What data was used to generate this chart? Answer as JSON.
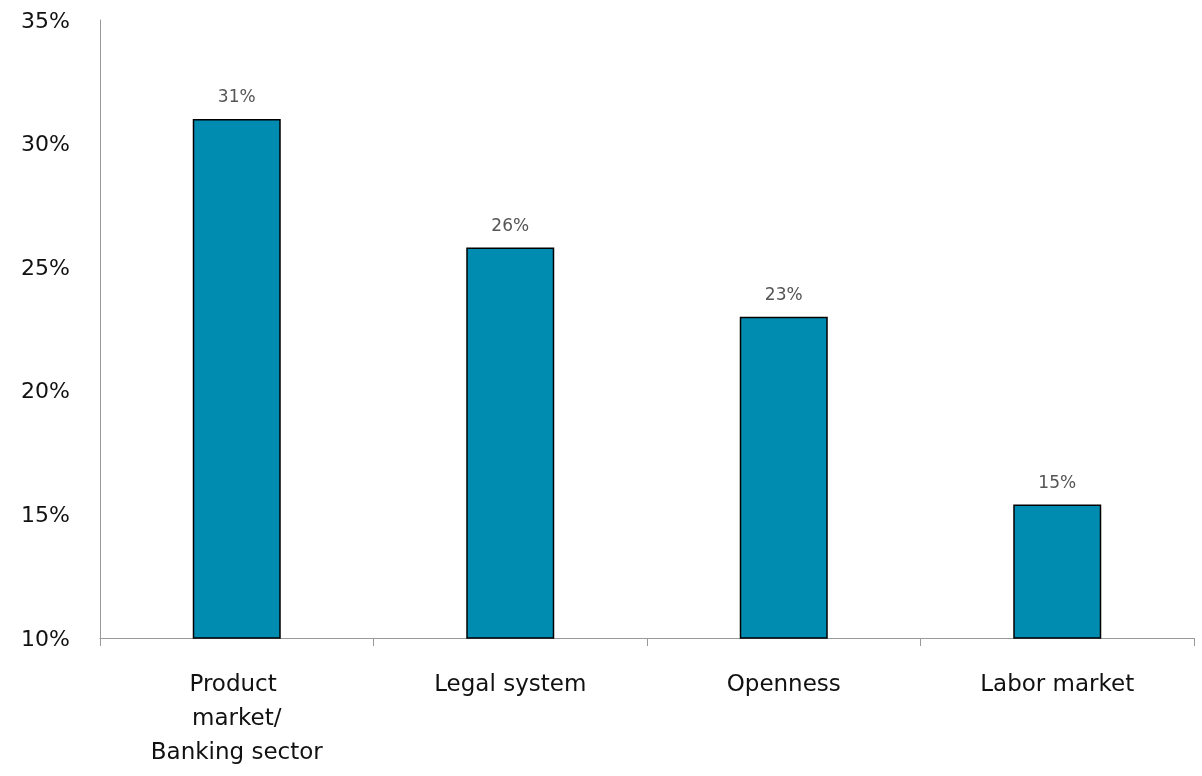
{
  "chart_data": {
    "type": "bar",
    "categories": [
      "Product market/Banking sector",
      "Legal system",
      "Openness",
      "Labor market"
    ],
    "values": [
      31,
      25.8,
      23,
      15.4
    ],
    "value_labels": [
      "31%",
      "26%",
      "23%",
      "15%"
    ],
    "color": "#008bb0",
    "ylim": [
      10,
      35
    ],
    "yticks": [
      {
        "value": 10,
        "label": "10%"
      },
      {
        "value": 15,
        "label": "15%"
      },
      {
        "value": 20,
        "label": "20%"
      },
      {
        "value": 25,
        "label": "25%"
      },
      {
        "value": 30,
        "label": "30%"
      },
      {
        "value": 35,
        "label": "35%"
      }
    ],
    "grid": false
  }
}
